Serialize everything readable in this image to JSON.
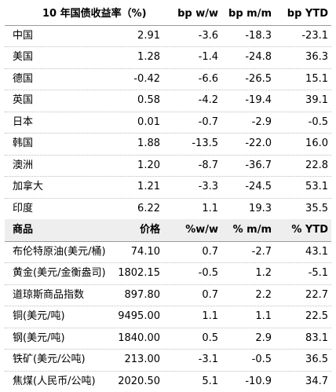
{
  "bonds": {
    "header": {
      "name": "10 年国债收益率（%)",
      "c1": "",
      "c2": "bp w/w",
      "c3": "bp m/m",
      "c4": "bp YTD"
    },
    "rows": [
      {
        "name": "中国",
        "v1": "2.91",
        "v2": "-3.6",
        "v3": "-18.3",
        "v4": "-23.1"
      },
      {
        "name": "美国",
        "v1": "1.28",
        "v2": "-1.4",
        "v3": "-24.8",
        "v4": "36.3"
      },
      {
        "name": "德国",
        "v1": "-0.42",
        "v2": "-6.6",
        "v3": "-26.5",
        "v4": "15.1"
      },
      {
        "name": "英国",
        "v1": "0.58",
        "v2": "-4.2",
        "v3": "-19.4",
        "v4": "39.1"
      },
      {
        "name": "日本",
        "v1": "0.01",
        "v2": "-0.7",
        "v3": "-2.9",
        "v4": "-0.5"
      },
      {
        "name": "韩国",
        "v1": "1.88",
        "v2": "-13.5",
        "v3": "-22.0",
        "v4": "16.0"
      },
      {
        "name": "澳洲",
        "v1": "1.20",
        "v2": "-8.7",
        "v3": "-36.7",
        "v4": "22.8"
      },
      {
        "name": "加拿大",
        "v1": "1.21",
        "v2": "-3.3",
        "v3": "-24.5",
        "v4": "53.1"
      },
      {
        "name": "印度",
        "v1": "6.22",
        "v2": "1.1",
        "v3": "19.3",
        "v4": "35.5"
      }
    ]
  },
  "commodities": {
    "header": {
      "name": "商品",
      "c1": "价格",
      "c2": "%w/w",
      "c3": "% m/m",
      "c4": "% YTD"
    },
    "rows": [
      {
        "name": "布伦特原油(美元/桶)",
        "v1": "74.10",
        "v2": "0.7",
        "v3": "-2.7",
        "v4": "43.1"
      },
      {
        "name": "黄金(美元/金衡盎司)",
        "v1": "1802.15",
        "v2": "-0.5",
        "v3": "1.2",
        "v4": "-5.1"
      },
      {
        "name": "道琼斯商品指数",
        "v1": "897.80",
        "v2": "0.7",
        "v3": "2.2",
        "v4": "22.7"
      },
      {
        "name": "铜(美元/吨)",
        "v1": "9495.00",
        "v2": "1.1",
        "v3": "1.1",
        "v4": "22.5"
      },
      {
        "name": "钢(美元/吨)",
        "v1": "1840.00",
        "v2": "0.5",
        "v3": "2.9",
        "v4": "83.1"
      },
      {
        "name": "铁矿(美元/公吨)",
        "v1": "213.00",
        "v2": "-3.1",
        "v3": "-0.5",
        "v4": "36.5"
      },
      {
        "name": "焦煤(人民币/公吨)",
        "v1": "2020.50",
        "v2": "5.1",
        "v3": "-10.9",
        "v4": "34.7"
      }
    ]
  }
}
